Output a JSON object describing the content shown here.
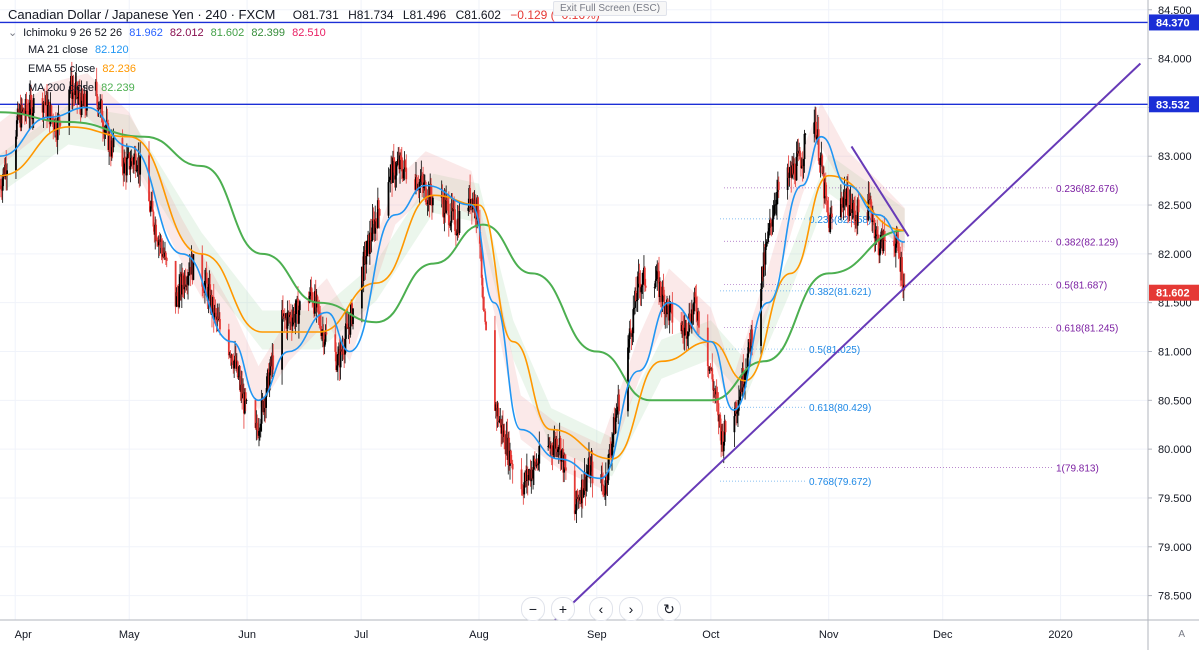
{
  "header": {
    "symbol": "Canadian Dollar / Japanese Yen · 240 · FXCM",
    "open": "O81.731",
    "high": "H81.734",
    "low": "L81.496",
    "close": "C81.602",
    "change": "−0.129 (−0.16%)",
    "exit_fullscreen": "Exit Full Screen (ESC)"
  },
  "indicators": [
    {
      "label": "Ichimoku 9 26 52 26",
      "values": [
        "81.962",
        "82.012",
        "81.602",
        "82.399",
        "82.510"
      ],
      "colors": [
        "#2962ff",
        "#880e4f",
        "#43a047",
        "#388e3c",
        "#e91e63"
      ]
    },
    {
      "label": "MA 21 close",
      "values": [
        "82.120"
      ],
      "colors": [
        "#2196f3"
      ]
    },
    {
      "label": "EMA 55 close",
      "values": [
        "82.236"
      ],
      "colors": [
        "#ff9800"
      ]
    },
    {
      "label": "MA 200 close",
      "values": [
        "82.239"
      ],
      "colors": [
        "#4caf50"
      ]
    }
  ],
  "toolbar": {
    "zoom_out": "−",
    "zoom_in": "+",
    "back": "‹",
    "forward": "›",
    "reset": "↻"
  },
  "auto_label": "A",
  "chart_data": {
    "type": "candlestick",
    "y_axis": {
      "range": [
        78.25,
        84.6
      ],
      "ticks": [
        "84.500",
        "84.000",
        "83.500",
        "83.000",
        "82.500",
        "82.000",
        "81.500",
        "81.000",
        "80.500",
        "80.000",
        "79.500",
        "79.000",
        "78.500"
      ]
    },
    "x_axis": {
      "labels": [
        "Apr",
        "May",
        "Jun",
        "Jul",
        "Aug",
        "Sep",
        "Oct",
        "Nov",
        "Dec",
        "2020"
      ]
    },
    "price_labels": [
      {
        "text": "84.370",
        "value": 84.37,
        "color": "#1b2fd6"
      },
      {
        "text": "83.532",
        "value": 83.532,
        "color": "#1b2fd6"
      },
      {
        "text": "81.602",
        "value": 81.602,
        "color": "#e53935"
      }
    ],
    "horizontal_lines": [
      {
        "value": 84.37,
        "color": "#1b2fd6"
      },
      {
        "value": 83.532,
        "color": "#1b2fd6"
      }
    ],
    "trend_lines": [
      {
        "from": [
          "2019-08-21",
          78.25
        ],
        "to": [
          "2020-01-22",
          83.95
        ],
        "color": "#673ab7"
      },
      {
        "from": [
          "2019-11-07",
          83.1
        ],
        "to": [
          "2019-11-22",
          82.18
        ],
        "color": "#673ab7"
      }
    ],
    "fib_right": {
      "color": "#7b1fa2",
      "levels": [
        {
          "text": "0.236(82.676)",
          "value": 82.676
        },
        {
          "text": "0.382(82.129)",
          "value": 82.129
        },
        {
          "text": "0.5(81.687)",
          "value": 81.687
        },
        {
          "text": "0.618(81.245)",
          "value": 81.245
        },
        {
          "text": "1(79.813)",
          "value": 79.813
        }
      ]
    },
    "fib_left": {
      "color": "#1e88e5",
      "levels": [
        {
          "text": "0.236(82.358)",
          "value": 82.358
        },
        {
          "text": "0.382(81.621)",
          "value": 81.621
        },
        {
          "text": "0.5(81.025)",
          "value": 81.025
        },
        {
          "text": "0.618(80.429)",
          "value": 80.429
        },
        {
          "text": "0.768(79.672)",
          "value": 79.672
        }
      ]
    },
    "series_styles": [
      {
        "name": "MA 21 close",
        "color": "#2196f3"
      },
      {
        "name": "EMA 55 close",
        "color": "#ff9800"
      },
      {
        "name": "MA 200 close",
        "color": "#4caf50"
      }
    ],
    "candle_colors": {
      "up": "#000000",
      "down": "#e53935"
    },
    "price_path": [
      [
        "2019-03-28",
        82.7
      ],
      [
        "2019-04-02",
        83.4
      ],
      [
        "2019-04-08",
        83.6
      ],
      [
        "2019-04-12",
        83.3
      ],
      [
        "2019-04-15",
        83.75
      ],
      [
        "2019-04-19",
        83.5
      ],
      [
        "2019-04-22",
        83.7
      ],
      [
        "2019-04-26",
        83.1
      ],
      [
        "2019-04-30",
        82.9
      ],
      [
        "2019-05-03",
        83.0
      ],
      [
        "2019-05-07",
        82.4
      ],
      [
        "2019-05-10",
        82.0
      ],
      [
        "2019-05-13",
        81.5
      ],
      [
        "2019-05-17",
        81.9
      ],
      [
        "2019-05-21",
        81.7
      ],
      [
        "2019-05-24",
        81.3
      ],
      [
        "2019-05-28",
        81.0
      ],
      [
        "2019-05-31",
        80.5
      ],
      [
        "2019-06-03",
        80.1
      ],
      [
        "2019-06-06",
        80.6
      ],
      [
        "2019-06-10",
        81.3
      ],
      [
        "2019-06-14",
        81.4
      ],
      [
        "2019-06-18",
        81.6
      ],
      [
        "2019-06-21",
        81.2
      ],
      [
        "2019-06-25",
        80.9
      ],
      [
        "2019-06-28",
        81.3
      ],
      [
        "2019-07-03",
        82.1
      ],
      [
        "2019-07-08",
        82.8
      ],
      [
        "2019-07-11",
        82.9
      ],
      [
        "2019-07-15",
        82.8
      ],
      [
        "2019-07-19",
        82.6
      ],
      [
        "2019-07-23",
        82.5
      ],
      [
        "2019-07-26",
        82.3
      ],
      [
        "2019-07-30",
        82.6
      ],
      [
        "2019-08-01",
        82.4
      ],
      [
        "2019-08-02",
        81.4
      ],
      [
        "2019-08-05",
        80.5
      ],
      [
        "2019-08-07",
        80.2
      ],
      [
        "2019-08-12",
        79.6
      ],
      [
        "2019-08-15",
        79.8
      ],
      [
        "2019-08-19",
        80.0
      ],
      [
        "2019-08-22",
        80.1
      ],
      [
        "2019-08-26",
        79.3
      ],
      [
        "2019-08-27",
        79.5
      ],
      [
        "2019-08-30",
        79.8
      ],
      [
        "2019-09-03",
        79.6
      ],
      [
        "2019-09-05",
        80.1
      ],
      [
        "2019-09-09",
        81.0
      ],
      [
        "2019-09-12",
        81.7
      ],
      [
        "2019-09-16",
        81.8
      ],
      [
        "2019-09-20",
        81.4
      ],
      [
        "2019-09-24",
        81.2
      ],
      [
        "2019-09-27",
        81.5
      ],
      [
        "2019-10-01",
        80.8
      ],
      [
        "2019-10-04",
        80.1
      ],
      [
        "2019-10-08",
        80.5
      ],
      [
        "2019-10-11",
        81.0
      ],
      [
        "2019-10-15",
        81.9
      ],
      [
        "2019-10-18",
        82.6
      ],
      [
        "2019-10-22",
        82.8
      ],
      [
        "2019-10-25",
        83.0
      ],
      [
        "2019-10-28",
        83.5
      ],
      [
        "2019-10-30",
        82.9
      ],
      [
        "2019-11-01",
        82.3
      ],
      [
        "2019-11-05",
        82.6
      ],
      [
        "2019-11-08",
        82.4
      ],
      [
        "2019-11-12",
        82.5
      ],
      [
        "2019-11-14",
        82.1
      ],
      [
        "2019-11-18",
        82.2
      ],
      [
        "2019-11-20",
        81.9
      ],
      [
        "2019-11-21",
        81.6
      ]
    ],
    "ma21_path": [
      [
        "2019-03-28",
        83.0
      ],
      [
        "2019-04-10",
        83.4
      ],
      [
        "2019-04-20",
        83.5
      ],
      [
        "2019-05-01",
        83.1
      ],
      [
        "2019-05-15",
        82.0
      ],
      [
        "2019-05-28",
        81.1
      ],
      [
        "2019-06-04",
        80.5
      ],
      [
        "2019-06-12",
        81.0
      ],
      [
        "2019-06-22",
        81.4
      ],
      [
        "2019-06-28",
        81.0
      ],
      [
        "2019-07-10",
        82.4
      ],
      [
        "2019-07-18",
        82.7
      ],
      [
        "2019-07-30",
        82.5
      ],
      [
        "2019-08-05",
        81.5
      ],
      [
        "2019-08-12",
        80.2
      ],
      [
        "2019-08-22",
        79.9
      ],
      [
        "2019-09-02",
        79.7
      ],
      [
        "2019-09-12",
        80.8
      ],
      [
        "2019-09-20",
        81.5
      ],
      [
        "2019-10-01",
        81.1
      ],
      [
        "2019-10-07",
        80.4
      ],
      [
        "2019-10-16",
        81.5
      ],
      [
        "2019-10-25",
        82.7
      ],
      [
        "2019-10-30",
        83.2
      ],
      [
        "2019-11-06",
        82.7
      ],
      [
        "2019-11-14",
        82.4
      ],
      [
        "2019-11-21",
        82.12
      ]
    ],
    "ema55_path": [
      [
        "2019-03-28",
        82.8
      ],
      [
        "2019-04-15",
        83.3
      ],
      [
        "2019-05-01",
        83.2
      ],
      [
        "2019-05-20",
        82.0
      ],
      [
        "2019-06-05",
        81.2
      ],
      [
        "2019-06-20",
        81.2
      ],
      [
        "2019-07-05",
        81.7
      ],
      [
        "2019-07-20",
        82.6
      ],
      [
        "2019-08-01",
        82.5
      ],
      [
        "2019-08-10",
        81.1
      ],
      [
        "2019-08-20",
        80.2
      ],
      [
        "2019-09-05",
        79.9
      ],
      [
        "2019-09-18",
        80.9
      ],
      [
        "2019-10-01",
        81.1
      ],
      [
        "2019-10-10",
        80.7
      ],
      [
        "2019-10-22",
        81.8
      ],
      [
        "2019-11-01",
        82.8
      ],
      [
        "2019-11-21",
        82.24
      ]
    ],
    "ma200_path": [
      [
        "2019-03-28",
        83.45
      ],
      [
        "2019-04-15",
        83.35
      ],
      [
        "2019-05-05",
        83.2
      ],
      [
        "2019-05-20",
        82.9
      ],
      [
        "2019-06-05",
        82.0
      ],
      [
        "2019-06-20",
        81.5
      ],
      [
        "2019-07-05",
        81.3
      ],
      [
        "2019-07-20",
        81.9
      ],
      [
        "2019-08-02",
        82.3
      ],
      [
        "2019-08-15",
        81.8
      ],
      [
        "2019-09-01",
        81.0
      ],
      [
        "2019-09-15",
        80.5
      ],
      [
        "2019-10-01",
        80.5
      ],
      [
        "2019-10-15",
        80.9
      ],
      [
        "2019-11-01",
        81.8
      ],
      [
        "2019-11-21",
        82.24
      ]
    ]
  }
}
